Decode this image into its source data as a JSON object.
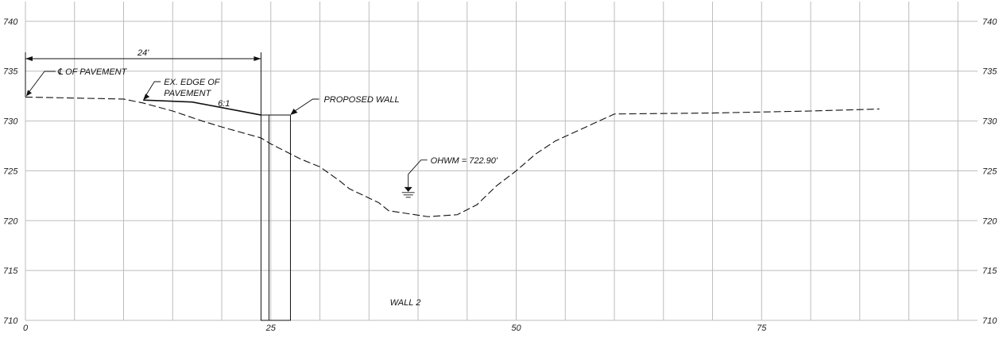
{
  "chart_data": {
    "type": "line",
    "title": "WALL 2",
    "x_ticks": [
      "0",
      "25",
      "50",
      "75"
    ],
    "y_ticks_left": [
      "740",
      "735",
      "730",
      "725",
      "720",
      "715",
      "710"
    ],
    "y_ticks_right": [
      "740",
      "735",
      "730",
      "725",
      "720",
      "715",
      "710"
    ],
    "xlim": [
      0,
      97
    ],
    "ylim": [
      710,
      741.5
    ],
    "series": [
      {
        "role": "existing-ground",
        "x": [
          0,
          5,
          10,
          12,
          15,
          18,
          20,
          24,
          25,
          28,
          30,
          32,
          33,
          36,
          37,
          41,
          44,
          46,
          48,
          50,
          52,
          54,
          60,
          70,
          80,
          87
        ],
        "y": [
          732.4,
          732.3,
          732.2,
          731.8,
          731.0,
          730.0,
          729.4,
          728.3,
          727.7,
          726.2,
          725.4,
          724.0,
          723.2,
          721.8,
          721.0,
          720.4,
          720.6,
          721.6,
          723.5,
          725.0,
          726.7,
          728.0,
          730.7,
          730.8,
          731.0,
          731.2
        ]
      },
      {
        "role": "proposed-grade",
        "x": [
          12,
          17,
          24
        ],
        "y": [
          732.1,
          731.9,
          730.6
        ]
      }
    ],
    "wall": {
      "x_left": 24,
      "x_right": 27,
      "y_top": 730.6,
      "y_bottom": 710
    },
    "dimension": {
      "x_from": 0,
      "x_to": 24,
      "label": "24'"
    },
    "ohwm": {
      "x": 39,
      "elevation": 722.9
    }
  },
  "labels": {
    "centerline": "℄ OF PAVEMENT",
    "edge_line1": "EX. EDGE OF",
    "edge_line2": "PAVEMENT",
    "slope": "6:1",
    "proposed_wall": "PROPOSED WALL",
    "ohwm": "OHWM = 722.90'",
    "wall_title": "WALL 2",
    "dimension": "24'"
  }
}
